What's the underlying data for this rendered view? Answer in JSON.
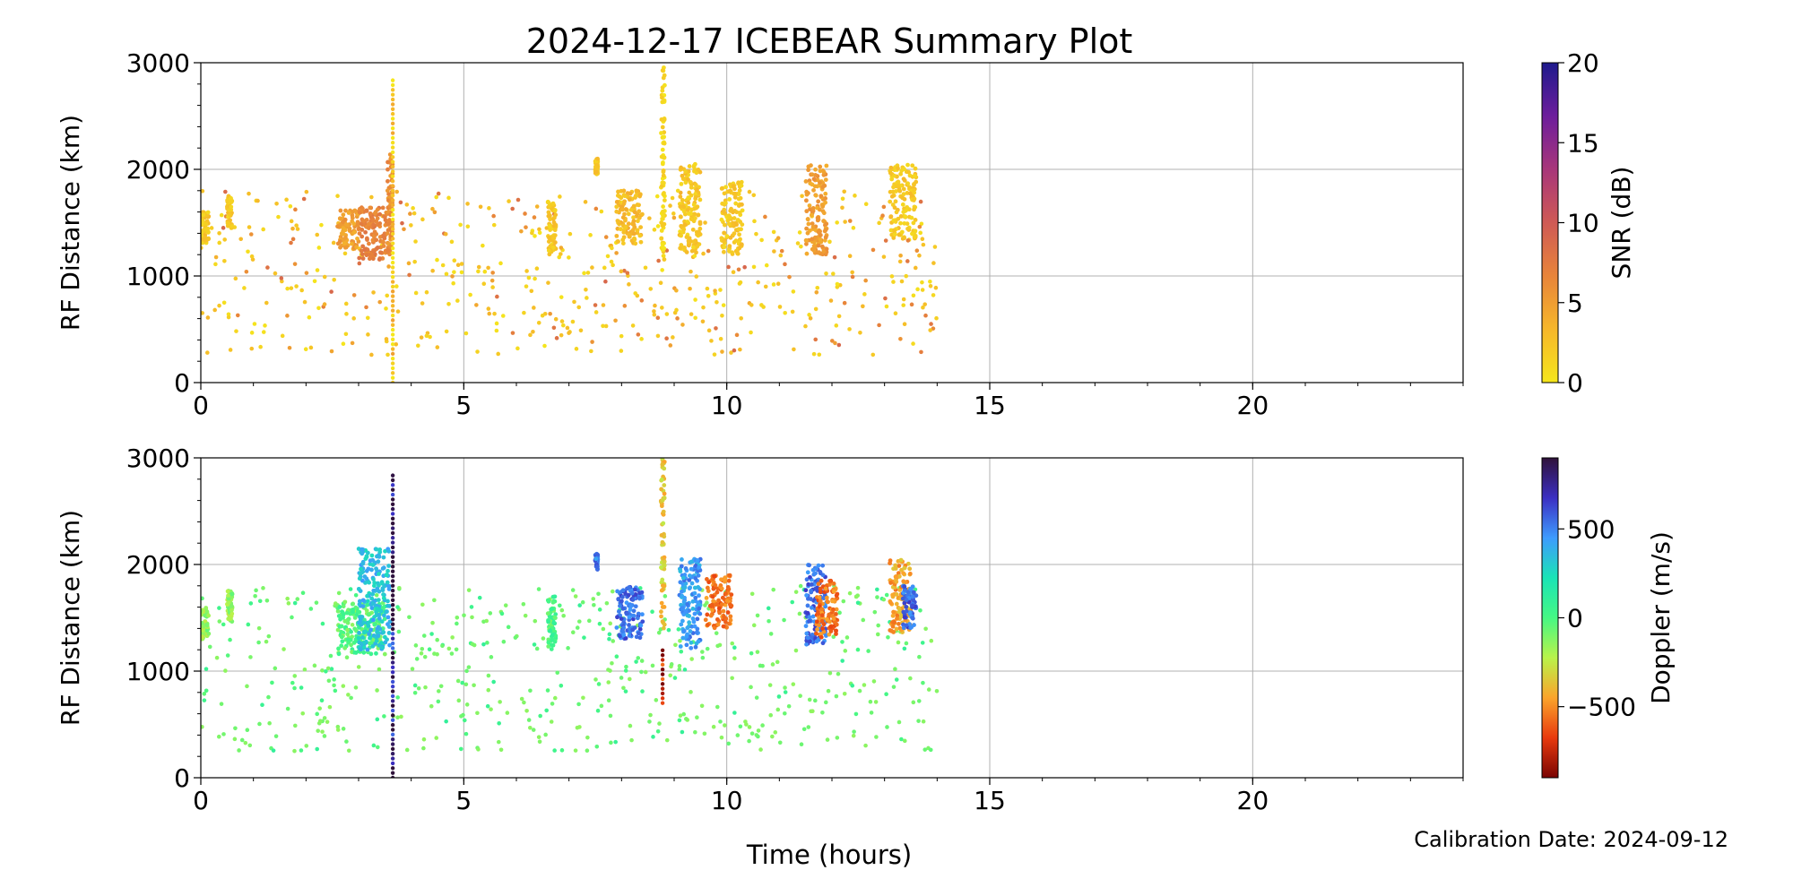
{
  "figure": {
    "title": "2024-12-17 ICEBEAR Summary Plot",
    "xlabel": "Time (hours)",
    "calibration_text": "Calibration Date: 2024-09-12"
  },
  "chart_data": [
    {
      "type": "scatter",
      "panel": "top",
      "ylabel": "RF Distance (km)",
      "xlim": [
        0,
        24
      ],
      "ylim": [
        0,
        3000
      ],
      "xticks": [
        0,
        5,
        10,
        15,
        20
      ],
      "yticks": [
        0,
        1000,
        2000,
        3000
      ],
      "grid": true,
      "colorbar": {
        "label": "SNR (dB)",
        "range": [
          0,
          20
        ],
        "ticks": [
          0,
          5,
          10,
          15,
          20
        ],
        "colors": [
          "#f5e61c",
          "#f6b72b",
          "#e8843a",
          "#cf5a55",
          "#a8367a",
          "#6d1d9c",
          "#1e1a8c"
        ]
      },
      "clusters": [
        {
          "x": [
            0.0,
            0.15
          ],
          "y": [
            1300,
            1600
          ],
          "value": 2
        },
        {
          "x": [
            0.5,
            0.6
          ],
          "y": [
            1450,
            1750
          ],
          "value": 2
        },
        {
          "x": [
            2.6,
            3.0
          ],
          "y": [
            1250,
            1620
          ],
          "value": 5
        },
        {
          "x": [
            3.0,
            3.6
          ],
          "y": [
            1150,
            1650
          ],
          "value": 7
        },
        {
          "x": [
            3.55,
            3.65
          ],
          "y": [
            1200,
            2150
          ],
          "value": 6
        },
        {
          "x": [
            6.6,
            6.75
          ],
          "y": [
            1200,
            1700
          ],
          "value": 2
        },
        {
          "x": [
            7.5,
            7.55
          ],
          "y": [
            1950,
            2100
          ],
          "value": 2
        },
        {
          "x": [
            7.9,
            8.4
          ],
          "y": [
            1300,
            1800
          ],
          "value": 3
        },
        {
          "x": [
            8.75,
            8.82
          ],
          "y": [
            1150,
            3000
          ],
          "value": 1
        },
        {
          "x": [
            9.1,
            9.5
          ],
          "y": [
            1200,
            2050
          ],
          "value": 2
        },
        {
          "x": [
            9.9,
            10.3
          ],
          "y": [
            1200,
            1900
          ],
          "value": 2
        },
        {
          "x": [
            11.5,
            11.9
          ],
          "y": [
            1200,
            2050
          ],
          "value": 5
        },
        {
          "x": [
            13.1,
            13.6
          ],
          "y": [
            1350,
            2050
          ],
          "value": 2
        }
      ],
      "scatter_region": {
        "x": [
          0.0,
          14.0
        ],
        "y": [
          250,
          1800
        ],
        "count": 520,
        "values": [
          0,
          9
        ]
      },
      "vertical_streaks": [
        {
          "x": 3.65,
          "y": [
            0,
            2850
          ],
          "value": 1
        }
      ]
    },
    {
      "type": "scatter",
      "panel": "bottom",
      "ylabel": "RF Distance (km)",
      "xlim": [
        0,
        24
      ],
      "ylim": [
        0,
        3000
      ],
      "xticks": [
        0,
        5,
        10,
        15,
        20
      ],
      "yticks": [
        0,
        1000,
        2000,
        3000
      ],
      "grid": true,
      "colorbar": {
        "label": "Doppler (m/s)",
        "range": [
          -900,
          900
        ],
        "ticks": [
          -500,
          0,
          500
        ],
        "colors": [
          "#7a0403",
          "#e83a0e",
          "#fba42b",
          "#b9f34a",
          "#46f884",
          "#1ae4b6",
          "#3e9bfe",
          "#3b2fc2",
          "#30123b"
        ]
      },
      "clusters": [
        {
          "x": [
            0.0,
            0.15
          ],
          "y": [
            1300,
            1600
          ],
          "value": -150
        },
        {
          "x": [
            0.5,
            0.6
          ],
          "y": [
            1450,
            1750
          ],
          "value": -150
        },
        {
          "x": [
            2.6,
            3.5
          ],
          "y": [
            1150,
            1650
          ],
          "value": -30
        },
        {
          "x": [
            3.0,
            3.6
          ],
          "y": [
            1200,
            2150
          ],
          "value": 350
        },
        {
          "x": [
            6.6,
            6.75
          ],
          "y": [
            1200,
            1700
          ],
          "value": 0
        },
        {
          "x": [
            7.5,
            7.55
          ],
          "y": [
            1950,
            2100
          ],
          "value": 500
        },
        {
          "x": [
            7.9,
            8.4
          ],
          "y": [
            1300,
            1800
          ],
          "value": 550
        },
        {
          "x": [
            8.75,
            8.82
          ],
          "y": [
            1400,
            3000
          ],
          "value": -350
        },
        {
          "x": [
            9.1,
            9.5
          ],
          "y": [
            1200,
            2050
          ],
          "value": 450
        },
        {
          "x": [
            9.6,
            10.1
          ],
          "y": [
            1400,
            1900
          ],
          "value": -550
        },
        {
          "x": [
            11.5,
            11.9
          ],
          "y": [
            1250,
            2000
          ],
          "value": 550
        },
        {
          "x": [
            11.7,
            12.1
          ],
          "y": [
            1300,
            1850
          ],
          "value": -550
        },
        {
          "x": [
            13.1,
            13.5
          ],
          "y": [
            1350,
            2050
          ],
          "value": -450
        },
        {
          "x": [
            13.35,
            13.6
          ],
          "y": [
            1400,
            1800
          ],
          "value": 550
        }
      ],
      "scatter_region": {
        "x": [
          0.0,
          14.0
        ],
        "y": [
          250,
          1800
        ],
        "count": 520,
        "values": [
          -150,
          100
        ]
      },
      "vertical_streaks": [
        {
          "x": 3.65,
          "y": [
            0,
            2850
          ],
          "value": 900
        },
        {
          "x": 8.78,
          "y": [
            700,
            1200
          ],
          "value": -850
        }
      ]
    }
  ]
}
